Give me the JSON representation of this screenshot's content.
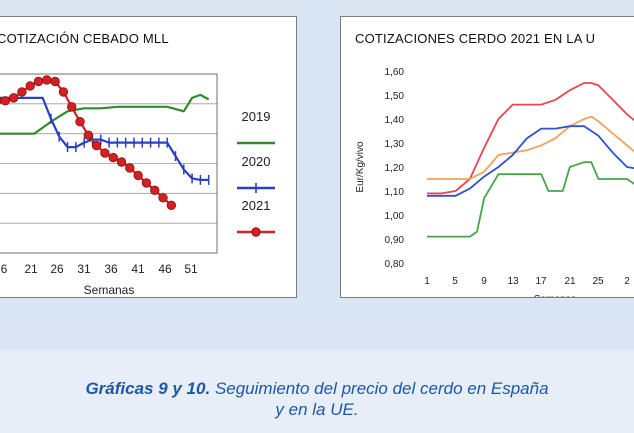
{
  "caption": {
    "bold": "Gráficas 9 y 10.",
    "text": "Seguimiento del precio del cerdo en España",
    "line2": "y en la UE."
  },
  "chart_data": [
    {
      "type": "line",
      "title": "COTIZACIÓN CEBADO MLL",
      "xlabel": "Semanas",
      "ylabel": "",
      "x_ticks": [
        "6",
        "21",
        "26",
        "31",
        "36",
        "41",
        "46",
        "51"
      ],
      "xlim": [
        1,
        54
      ],
      "ylim": [
        0,
        6
      ],
      "grid": true,
      "legend": "right",
      "series": [
        {
          "name": "2019",
          "color": "#2e8b2e",
          "marker": "none",
          "x": [
            1,
            10,
            14,
            18,
            22,
            26,
            30,
            34,
            38,
            42,
            46,
            48,
            50,
            52
          ],
          "y": [
            4.0,
            4.0,
            4.4,
            4.75,
            4.85,
            4.85,
            4.9,
            4.9,
            4.9,
            4.9,
            4.75,
            5.2,
            5.3,
            5.15
          ]
        },
        {
          "name": "2020",
          "color": "#2b3fc2",
          "marker": "plus",
          "x": [
            1,
            12,
            14,
            16,
            18,
            20,
            22,
            24,
            26,
            28,
            30,
            32,
            34,
            36,
            38,
            40,
            42,
            44,
            46,
            48,
            50,
            52
          ],
          "y": [
            5.2,
            5.2,
            4.5,
            3.9,
            3.55,
            3.55,
            3.7,
            3.8,
            3.8,
            3.7,
            3.7,
            3.7,
            3.7,
            3.7,
            3.7,
            3.7,
            3.7,
            3.25,
            2.8,
            2.5,
            2.45,
            2.45
          ]
        },
        {
          "name": "2021",
          "color": "#d42020",
          "marker": "circle",
          "x": [
            1,
            3,
            5,
            7,
            9,
            11,
            13,
            15,
            17,
            19,
            21,
            23,
            25,
            27,
            29,
            31,
            33,
            35,
            37,
            39,
            41,
            43
          ],
          "y": [
            5.1,
            5.1,
            5.2,
            5.4,
            5.6,
            5.75,
            5.8,
            5.75,
            5.4,
            4.9,
            4.4,
            3.95,
            3.6,
            3.35,
            3.2,
            3.05,
            2.85,
            2.6,
            2.35,
            2.1,
            1.85,
            1.6
          ]
        }
      ]
    },
    {
      "type": "line",
      "title": "COTIZACIONES CERDO 2021 EN LA U",
      "xlabel": "Semanas",
      "ylabel": "Eur/Kg/vivo",
      "x_ticks": [
        "1",
        "5",
        "9",
        "13",
        "17",
        "21",
        "25",
        "2"
      ],
      "y_ticks": [
        "1,60",
        "1,50",
        "1,40",
        "1,30",
        "1,20",
        "1,10",
        "1,00",
        "0,90",
        "0,80"
      ],
      "xlim": [
        -2,
        32
      ],
      "ylim": [
        0.8,
        1.6
      ],
      "grid": false,
      "series": [
        {
          "color": "#e8474c",
          "x": [
            1,
            3,
            5,
            7,
            9,
            11,
            13,
            15,
            17,
            19,
            21,
            23,
            24,
            25,
            27,
            29,
            31
          ],
          "y": [
            1.09,
            1.09,
            1.1,
            1.15,
            1.28,
            1.4,
            1.46,
            1.46,
            1.46,
            1.48,
            1.52,
            1.55,
            1.55,
            1.54,
            1.48,
            1.42,
            1.37
          ]
        },
        {
          "color": "#f0a35a",
          "x": [
            1,
            3,
            5,
            7,
            9,
            11,
            13,
            15,
            17,
            19,
            21,
            23,
            24,
            25,
            27,
            29,
            31
          ],
          "y": [
            1.15,
            1.15,
            1.15,
            1.15,
            1.18,
            1.25,
            1.26,
            1.27,
            1.29,
            1.32,
            1.37,
            1.4,
            1.41,
            1.39,
            1.34,
            1.29,
            1.24
          ]
        },
        {
          "color": "#2e4fd6",
          "x": [
            1,
            3,
            5,
            7,
            9,
            11,
            13,
            15,
            17,
            19,
            21,
            23,
            25,
            27,
            29,
            31
          ],
          "y": [
            1.08,
            1.08,
            1.08,
            1.11,
            1.16,
            1.2,
            1.25,
            1.32,
            1.36,
            1.36,
            1.37,
            1.37,
            1.33,
            1.26,
            1.2,
            1.19
          ]
        },
        {
          "color": "#46a646",
          "x": [
            1,
            3,
            5,
            7,
            8,
            9,
            11,
            13,
            15,
            17,
            18,
            20,
            21,
            23,
            24,
            25,
            27,
            29,
            31
          ],
          "y": [
            0.91,
            0.91,
            0.91,
            0.91,
            0.93,
            1.07,
            1.17,
            1.17,
            1.17,
            1.17,
            1.1,
            1.1,
            1.2,
            1.22,
            1.22,
            1.15,
            1.15,
            1.15,
            1.11
          ]
        }
      ]
    }
  ]
}
